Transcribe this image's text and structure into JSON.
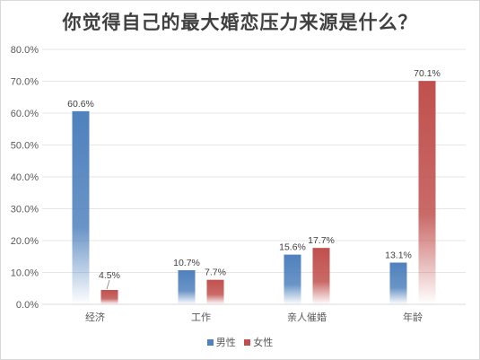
{
  "chart_data": {
    "type": "bar",
    "title": "你觉得自己的最大婚恋压力来源是什么？",
    "xlabel": "",
    "ylabel": "",
    "categories": [
      "经济",
      "工作",
      "亲人催婚",
      "年龄"
    ],
    "series": [
      {
        "name": "男性",
        "values": [
          60.6,
          10.7,
          15.6,
          13.1
        ],
        "color": "#4f81bd",
        "labels": [
          "60.6%",
          "10.7%",
          "15.6%",
          "13.1%"
        ]
      },
      {
        "name": "女性",
        "values": [
          4.5,
          7.7,
          17.7,
          70.1
        ],
        "color": "#c0504d",
        "labels": [
          "4.5%",
          "7.7%",
          "17.7%",
          "70.1%"
        ]
      }
    ],
    "ylim": [
      0,
      80
    ],
    "yticks": [
      "0.0%",
      "10.0%",
      "20.0%",
      "30.0%",
      "40.0%",
      "50.0%",
      "60.0%",
      "70.0%",
      "80.0%"
    ],
    "grid": true,
    "legend_position": "bottom",
    "fill_style": "gradient-fading-to-white"
  }
}
